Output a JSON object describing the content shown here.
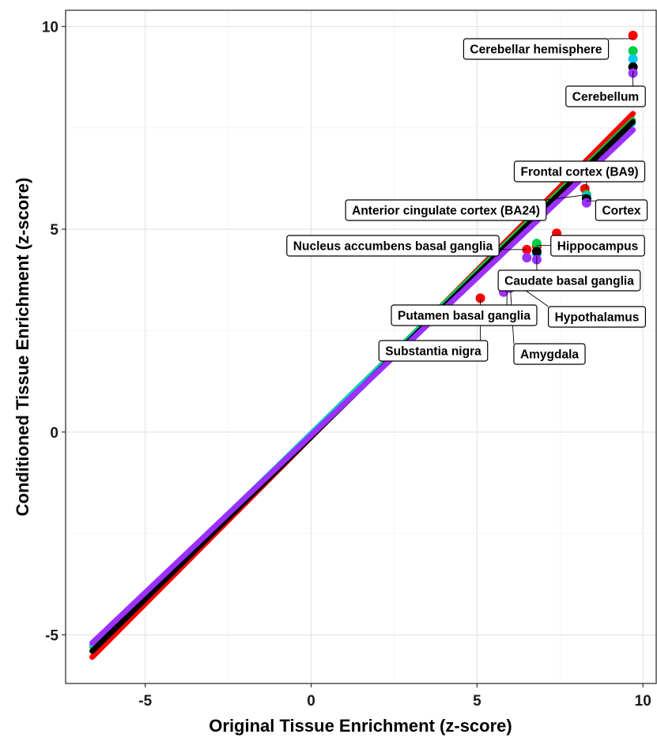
{
  "chart_data": {
    "type": "scatter",
    "title": "",
    "xlabel": "Original Tissue Enrichment (z-score)",
    "ylabel": "Conditioned Tissue Enrichment (z-score)",
    "xlim": [
      -7.4,
      10.4
    ],
    "ylim": [
      -6.2,
      10.4
    ],
    "x_ticks": [
      -5,
      0,
      5,
      10
    ],
    "y_ticks": [
      -5,
      0,
      5,
      10
    ],
    "grid": true,
    "legend": "none",
    "series": [
      {
        "color": "#ff0000",
        "line": [
          [
            -6.6,
            -5.55
          ],
          [
            9.7,
            7.85
          ]
        ],
        "points": [
          [
            9.7,
            9.78
          ],
          [
            8.25,
            6.0
          ],
          [
            7.4,
            4.9
          ],
          [
            6.8,
            4.58
          ],
          [
            6.5,
            4.5
          ],
          [
            6.1,
            3.65
          ],
          [
            5.1,
            3.3
          ]
        ]
      },
      {
        "color": "#00cc44",
        "line": [
          [
            -6.6,
            -5.3
          ],
          [
            9.7,
            7.7
          ]
        ],
        "points": [
          [
            9.7,
            9.4
          ],
          [
            8.3,
            5.85
          ],
          [
            6.8,
            4.65
          ],
          [
            6.0,
            3.7
          ]
        ]
      },
      {
        "color": "#00ccee",
        "line": [
          [
            -6.6,
            -5.25
          ],
          [
            9.7,
            7.6
          ]
        ],
        "points": [
          [
            9.7,
            9.2
          ],
          [
            8.3,
            5.8
          ],
          [
            6.8,
            4.4
          ]
        ]
      },
      {
        "color": "#000000",
        "line": [
          [
            -6.6,
            -5.4
          ],
          [
            9.7,
            7.65
          ]
        ],
        "points": [
          [
            9.7,
            9.0
          ],
          [
            8.3,
            5.75
          ],
          [
            6.8,
            4.45
          ]
        ]
      },
      {
        "color": "#9b30ff",
        "line": [
          [
            -6.6,
            -5.2
          ],
          [
            9.7,
            7.45
          ]
        ],
        "points": [
          [
            9.7,
            8.85
          ],
          [
            8.3,
            5.65
          ],
          [
            6.8,
            4.25
          ],
          [
            6.5,
            4.3
          ],
          [
            6.0,
            3.55
          ],
          [
            5.8,
            3.45
          ]
        ]
      }
    ],
    "annotations": [
      {
        "text": "Cerebellar hemisphere",
        "x": 9.7,
        "y": 9.7
      },
      {
        "text": "Cerebellum",
        "x": 9.7,
        "y": 8.9
      },
      {
        "text": "Frontal cortex (BA9)",
        "x": 8.3,
        "y": 6.0
      },
      {
        "text": "Anterior cingulate cortex (BA24)",
        "x": 8.3,
        "y": 5.85
      },
      {
        "text": "Cortex",
        "x": 8.3,
        "y": 5.7
      },
      {
        "text": "Nucleus accumbens basal ganglia",
        "x": 6.5,
        "y": 4.5
      },
      {
        "text": "Hippocampus",
        "x": 6.8,
        "y": 4.6
      },
      {
        "text": "Caudate basal ganglia",
        "x": 6.8,
        "y": 4.35
      },
      {
        "text": "Putamen basal ganglia",
        "x": 5.9,
        "y": 3.9
      },
      {
        "text": "Hypothalamus",
        "x": 6.1,
        "y": 3.7
      },
      {
        "text": "Substantia nigra",
        "x": 5.1,
        "y": 3.3
      },
      {
        "text": "Amygdala",
        "x": 6.0,
        "y": 3.6
      }
    ]
  }
}
